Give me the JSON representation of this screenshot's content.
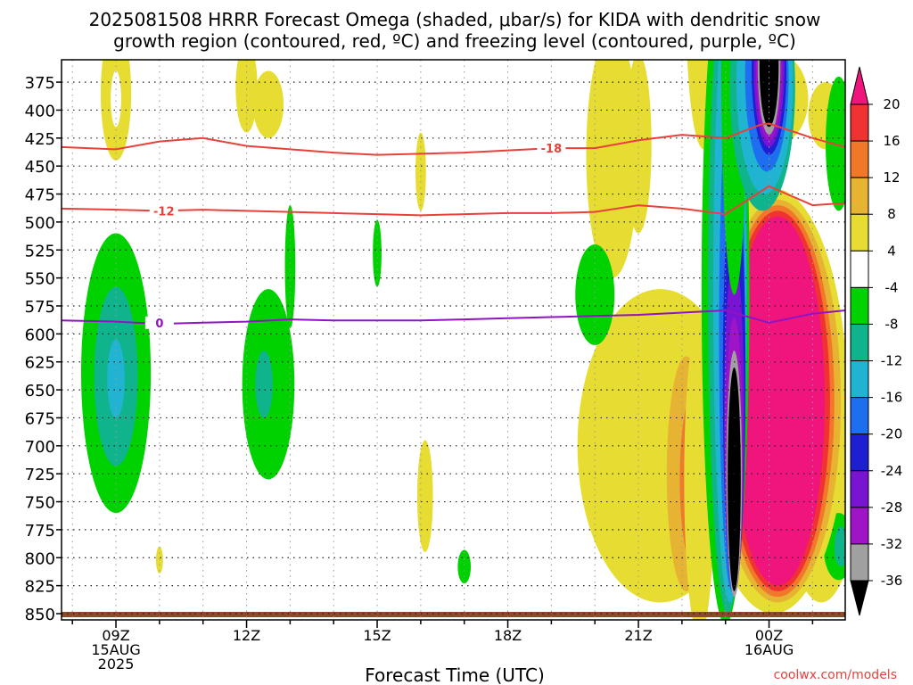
{
  "chart_data": {
    "type": "heatmap",
    "title_line1": "2025081508 HRRR Forecast Omega (shaded, μbar/s) for KIDA with dendritic snow",
    "title_line2": "growth region (contoured, red, ºC) and freezing level (contoured, purple, ºC)",
    "xlabel": "Forecast Time (UTC)",
    "credit": "coolwx.com/models",
    "x_range_hours": [
      7.75,
      25.75
    ],
    "y_range_mb": [
      850,
      355
    ],
    "y_ticks": [
      375,
      400,
      425,
      450,
      475,
      500,
      525,
      550,
      575,
      600,
      625,
      650,
      675,
      700,
      725,
      750,
      775,
      800,
      825,
      850
    ],
    "y_tick_labels": [
      "375",
      "400",
      "425",
      "450",
      "475",
      "500",
      "525",
      "550",
      "575",
      "600",
      "625",
      "650",
      "675",
      "700",
      "725",
      "750",
      "775",
      "800",
      "825",
      "850"
    ],
    "x_ticks": [
      {
        "hour": 9,
        "lines": [
          "09Z",
          "15AUG",
          "2025"
        ]
      },
      {
        "hour": 12,
        "lines": [
          "12Z"
        ]
      },
      {
        "hour": 15,
        "lines": [
          "15Z"
        ]
      },
      {
        "hour": 18,
        "lines": [
          "18Z"
        ]
      },
      {
        "hour": 21,
        "lines": [
          "21Z"
        ]
      },
      {
        "hour": 24,
        "lines": [
          "00Z",
          "16AUG"
        ]
      }
    ],
    "colorbar": {
      "labels": [
        "20",
        "16",
        "12",
        "8",
        "4",
        "-4",
        "-8",
        "-12",
        "-16",
        "-20",
        "-24",
        "-28",
        "-32",
        "-36"
      ],
      "colors": [
        "#f0147d",
        "#f03232",
        "#f07828",
        "#e6b432",
        "#e6dc32",
        "#ffffff",
        "#00d200",
        "#10b48c",
        "#20b4d2",
        "#1e6ef0",
        "#1e1ed2",
        "#7814d2",
        "#a014c8",
        "#a0a0a0",
        "#000000"
      ]
    },
    "contours": [
      {
        "label": "-18",
        "color": "#e8413c",
        "points": [
          [
            7.75,
            433
          ],
          [
            9,
            435
          ],
          [
            10,
            428
          ],
          [
            11,
            425
          ],
          [
            12,
            432
          ],
          [
            14,
            438
          ],
          [
            15,
            440
          ],
          [
            16,
            439
          ],
          [
            17,
            438
          ],
          [
            18,
            436
          ],
          [
            19,
            434
          ],
          [
            20,
            434
          ],
          [
            21,
            427
          ],
          [
            22,
            422
          ],
          [
            23,
            425
          ],
          [
            23.8,
            413
          ],
          [
            24,
            412
          ],
          [
            25,
            425
          ],
          [
            25.75,
            433
          ]
        ],
        "label_at": [
          19,
          434
        ]
      },
      {
        "label": "-12",
        "color": "#e8413c",
        "points": [
          [
            7.75,
            488
          ],
          [
            9,
            489
          ],
          [
            10,
            490
          ],
          [
            11,
            489
          ],
          [
            12,
            490
          ],
          [
            14,
            492
          ],
          [
            15,
            493
          ],
          [
            16,
            494
          ],
          [
            17,
            493
          ],
          [
            18,
            492
          ],
          [
            19,
            492
          ],
          [
            20,
            491
          ],
          [
            21,
            485
          ],
          [
            22,
            488
          ],
          [
            23,
            493
          ],
          [
            24,
            468
          ],
          [
            25,
            485
          ],
          [
            25.75,
            483
          ]
        ],
        "label_at": [
          10.1,
          490
        ]
      },
      {
        "label": "0",
        "color": "#9014c4",
        "points": [
          [
            7.75,
            588
          ],
          [
            9,
            589
          ],
          [
            10,
            591
          ],
          [
            11,
            590
          ],
          [
            12,
            589
          ],
          [
            13,
            587
          ],
          [
            14,
            588
          ],
          [
            15,
            588
          ],
          [
            16,
            588
          ],
          [
            17,
            587
          ],
          [
            18,
            586
          ],
          [
            19,
            585
          ],
          [
            20,
            584
          ],
          [
            21,
            583
          ],
          [
            22,
            581
          ],
          [
            23,
            579
          ],
          [
            24,
            590
          ],
          [
            25,
            582
          ],
          [
            25.75,
            579
          ]
        ],
        "label_at": [
          10,
          590
        ]
      }
    ],
    "features": [
      {
        "c": 4,
        "x": 9.0,
        "p": 385,
        "w": 0.35,
        "h": 60
      },
      {
        "c": 5,
        "x": 9.0,
        "p": 390,
        "w": 0.12,
        "h": 25
      },
      {
        "c": 4,
        "x": 12.0,
        "p": 380,
        "w": 0.25,
        "h": 40
      },
      {
        "c": 4,
        "x": 12.5,
        "p": 395,
        "w": 0.35,
        "h": 30
      },
      {
        "c": 4,
        "x": 16.0,
        "p": 455,
        "w": 0.12,
        "h": 35
      },
      {
        "c": 4,
        "x": 16.1,
        "p": 745,
        "w": 0.18,
        "h": 50
      },
      {
        "c": 4,
        "x": 10.0,
        "p": 802,
        "w": 0.08,
        "h": 12
      },
      {
        "c": 4,
        "x": 20.4,
        "p": 440,
        "w": 0.6,
        "h": 110
      },
      {
        "c": 4,
        "x": 21.0,
        "p": 430,
        "w": 0.3,
        "h": 80
      },
      {
        "c": 4,
        "x": 22.5,
        "p": 315,
        "w": 0.4,
        "h": 120
      },
      {
        "c": 4,
        "x": 24.2,
        "p": 390,
        "w": 0.7,
        "h": 40
      },
      {
        "c": 4,
        "x": 25.3,
        "p": 405,
        "w": 0.4,
        "h": 30
      },
      {
        "c": 4,
        "x": 21.5,
        "p": 700,
        "w": 1.9,
        "h": 140
      },
      {
        "c": 4,
        "x": 25.2,
        "p": 710,
        "w": 0.9,
        "h": 130
      },
      {
        "c": 6,
        "x": 9.0,
        "p": 635,
        "w": 0.8,
        "h": 125
      },
      {
        "c": 7,
        "x": 9.0,
        "p": 638,
        "w": 0.5,
        "h": 80
      },
      {
        "c": 8,
        "x": 9.0,
        "p": 640,
        "w": 0.2,
        "h": 35
      },
      {
        "c": 6,
        "x": 12.5,
        "p": 645,
        "w": 0.6,
        "h": 85
      },
      {
        "c": 7,
        "x": 12.4,
        "p": 645,
        "w": 0.2,
        "h": 30
      },
      {
        "c": 6,
        "x": 13.0,
        "p": 540,
        "w": 0.12,
        "h": 55
      },
      {
        "c": 6,
        "x": 15.0,
        "p": 528,
        "w": 0.1,
        "h": 30
      },
      {
        "c": 6,
        "x": 20.0,
        "p": 565,
        "w": 0.45,
        "h": 45
      },
      {
        "c": 6,
        "x": 17.0,
        "p": 808,
        "w": 0.15,
        "h": 15
      },
      {
        "c": 6,
        "x": 25.6,
        "p": 430,
        "w": 0.3,
        "h": 60
      },
      {
        "c": 6,
        "x": 25.6,
        "p": 790,
        "w": 0.35,
        "h": 30
      },
      {
        "c": 7,
        "x": 25.65,
        "p": 790,
        "w": 0.15,
        "h": 18
      },
      {
        "c": 3,
        "x": 22.1,
        "p": 725,
        "w": 0.45,
        "h": 105
      },
      {
        "c": 2,
        "x": 22.3,
        "p": 730,
        "w": 0.35,
        "h": 80
      },
      {
        "c": 1,
        "x": 22.4,
        "p": 735,
        "w": 0.25,
        "h": 60
      },
      {
        "c": 0,
        "x": 22.5,
        "p": 740,
        "w": 0.15,
        "h": 40
      },
      {
        "c": 4,
        "x": 24.1,
        "p": 660,
        "w": 1.7,
        "h": 190
      },
      {
        "c": 3,
        "x": 24.2,
        "p": 660,
        "w": 1.45,
        "h": 180
      },
      {
        "c": 2,
        "x": 24.2,
        "p": 660,
        "w": 1.3,
        "h": 175
      },
      {
        "c": 1,
        "x": 24.2,
        "p": 660,
        "w": 1.2,
        "h": 170
      },
      {
        "c": 0,
        "x": 24.2,
        "p": 660,
        "w": 1.08,
        "h": 165
      },
      {
        "c": 4,
        "x": 22.4,
        "p": 730,
        "w": 0.35,
        "h": 140
      },
      {
        "c": 6,
        "x": 23.0,
        "p": 560,
        "w": 0.55,
        "h": 300
      },
      {
        "c": 7,
        "x": 23.05,
        "p": 560,
        "w": 0.45,
        "h": 290
      },
      {
        "c": 8,
        "x": 23.1,
        "p": 560,
        "w": 0.38,
        "h": 280
      },
      {
        "c": 9,
        "x": 23.15,
        "p": 600,
        "w": 0.3,
        "h": 230
      },
      {
        "c": 10,
        "x": 23.2,
        "p": 640,
        "w": 0.26,
        "h": 190
      },
      {
        "c": 11,
        "x": 23.2,
        "p": 680,
        "w": 0.23,
        "h": 150
      },
      {
        "c": 12,
        "x": 23.2,
        "p": 710,
        "w": 0.2,
        "h": 125
      },
      {
        "c": 13,
        "x": 23.2,
        "p": 725,
        "w": 0.18,
        "h": 110
      },
      {
        "c": 14,
        "x": 23.2,
        "p": 730,
        "w": 0.15,
        "h": 100
      },
      {
        "c": 6,
        "x": 23.2,
        "p": 355,
        "w": 0.3,
        "h": 210
      },
      {
        "c": 7,
        "x": 23.85,
        "p": 380,
        "w": 0.75,
        "h": 110
      },
      {
        "c": 8,
        "x": 23.9,
        "p": 375,
        "w": 0.65,
        "h": 100
      },
      {
        "c": 9,
        "x": 23.95,
        "p": 370,
        "w": 0.5,
        "h": 85
      },
      {
        "c": 10,
        "x": 24.0,
        "p": 365,
        "w": 0.4,
        "h": 75
      },
      {
        "c": 11,
        "x": 24.0,
        "p": 363,
        "w": 0.35,
        "h": 70
      },
      {
        "c": 12,
        "x": 24.0,
        "p": 362,
        "w": 0.3,
        "h": 65
      },
      {
        "c": 13,
        "x": 24.0,
        "p": 360,
        "w": 0.26,
        "h": 62
      },
      {
        "c": 14,
        "x": 24.0,
        "p": 360,
        "w": 0.22,
        "h": 55
      }
    ]
  }
}
